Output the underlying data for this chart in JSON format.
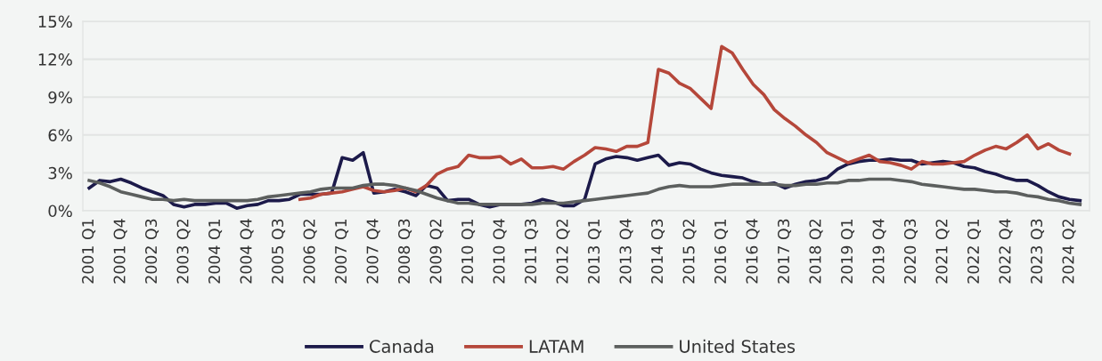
{
  "chart_data": {
    "type": "line",
    "categories": [
      "2001 Q1",
      null,
      null,
      "2001 Q4",
      null,
      null,
      "2002 Q3",
      null,
      null,
      "2003 Q2",
      null,
      null,
      "2004 Q1",
      null,
      null,
      "2004 Q4",
      null,
      null,
      "2005 Q3",
      null,
      null,
      "2006 Q2",
      null,
      null,
      "2007 Q1",
      null,
      null,
      "2007 Q4",
      null,
      null,
      "2008 Q3",
      null,
      null,
      "2009 Q2",
      null,
      null,
      "2010 Q1",
      null,
      null,
      "2010 Q4",
      null,
      null,
      "2011 Q3",
      null,
      null,
      "2012 Q2",
      null,
      null,
      "2013 Q1",
      null,
      null,
      "2013 Q4",
      null,
      null,
      "2014 Q3",
      null,
      null,
      "2015 Q2",
      null,
      null,
      "2016 Q1",
      null,
      null,
      "2016 Q4",
      null,
      null,
      "2017 Q3",
      null,
      null,
      "2018 Q2",
      null,
      null,
      "2019 Q1",
      null,
      null,
      "2019 Q4",
      null,
      null,
      "2020 Q3",
      null,
      null,
      "2021 Q2",
      null,
      null,
      "2022 Q1",
      null,
      null,
      "2022 Q4",
      null,
      null,
      "2023 Q3",
      null,
      null,
      "2024 Q2",
      null
    ],
    "series": [
      {
        "name": "Canada",
        "color": "#1c1a4a",
        "values": [
          1.8,
          2.4,
          2.3,
          2.5,
          2.2,
          1.8,
          1.5,
          1.2,
          0.5,
          0.3,
          0.5,
          0.5,
          0.6,
          0.6,
          0.2,
          0.4,
          0.5,
          0.8,
          0.8,
          0.9,
          1.3,
          1.3,
          1.3,
          1.4,
          4.2,
          4.0,
          4.6,
          1.4,
          1.5,
          1.7,
          1.5,
          1.2,
          2.0,
          1.8,
          0.8,
          0.9,
          0.9,
          0.5,
          0.3,
          0.5,
          0.5,
          0.5,
          0.6,
          0.9,
          0.7,
          0.4,
          0.4,
          0.9,
          3.7,
          4.1,
          4.3,
          4.2,
          4.0,
          4.2,
          4.4,
          3.6,
          3.8,
          3.7,
          3.3,
          3.0,
          2.8,
          2.7,
          2.6,
          2.3,
          2.1,
          2.2,
          1.8,
          2.1,
          2.3,
          2.4,
          2.6,
          3.3,
          3.7,
          3.9,
          4.0,
          4.0,
          4.1,
          4.0,
          4.0,
          3.7,
          3.8,
          3.9,
          3.8,
          3.5,
          3.4,
          3.1,
          2.9,
          2.6,
          2.4,
          2.4,
          2.0,
          1.5,
          1.1,
          0.9,
          0.8
        ]
      },
      {
        "name": "LATAM",
        "color": "#b5473a",
        "values": [
          null,
          null,
          null,
          null,
          null,
          null,
          null,
          null,
          null,
          null,
          null,
          null,
          null,
          null,
          null,
          null,
          null,
          null,
          null,
          null,
          0.9,
          1.0,
          1.3,
          1.4,
          1.5,
          1.7,
          1.9,
          1.6,
          1.5,
          1.6,
          1.8,
          1.5,
          2.0,
          2.9,
          3.3,
          3.5,
          4.4,
          4.2,
          4.2,
          4.3,
          3.7,
          4.1,
          3.4,
          3.4,
          3.5,
          3.3,
          3.9,
          4.4,
          5.0,
          4.9,
          4.7,
          5.1,
          5.1,
          5.4,
          11.2,
          10.9,
          10.1,
          9.7,
          8.9,
          8.1,
          13.0,
          12.5,
          11.2,
          10.0,
          9.2,
          8.0,
          7.3,
          6.7,
          6.0,
          5.4,
          4.6,
          4.2,
          3.8,
          4.1,
          4.4,
          3.9,
          3.8,
          3.6,
          3.3,
          3.9,
          3.7,
          3.7,
          3.8,
          3.9,
          4.4,
          4.8,
          5.1,
          4.9,
          5.4,
          6.0,
          4.9,
          5.3,
          4.8,
          4.5,
          null
        ]
      },
      {
        "name": "United States",
        "color": "#5c5f5e",
        "values": [
          2.4,
          2.2,
          1.9,
          1.5,
          1.3,
          1.1,
          0.9,
          0.9,
          0.8,
          0.9,
          0.8,
          0.8,
          0.8,
          0.8,
          0.8,
          0.8,
          0.9,
          1.1,
          1.2,
          1.3,
          1.4,
          1.5,
          1.7,
          1.8,
          1.8,
          1.8,
          2.0,
          2.1,
          2.1,
          2.0,
          1.8,
          1.6,
          1.3,
          1.0,
          0.8,
          0.6,
          0.6,
          0.5,
          0.5,
          0.5,
          0.5,
          0.5,
          0.5,
          0.6,
          0.6,
          0.6,
          0.7,
          0.8,
          0.9,
          1.0,
          1.1,
          1.2,
          1.3,
          1.4,
          1.7,
          1.9,
          2.0,
          1.9,
          1.9,
          1.9,
          2.0,
          2.1,
          2.1,
          2.1,
          2.1,
          2.1,
          2.0,
          2.0,
          2.1,
          2.1,
          2.2,
          2.2,
          2.4,
          2.4,
          2.5,
          2.5,
          2.5,
          2.4,
          2.3,
          2.1,
          2.0,
          1.9,
          1.8,
          1.7,
          1.7,
          1.6,
          1.5,
          1.5,
          1.4,
          1.2,
          1.1,
          0.9,
          0.8,
          0.6,
          0.5
        ]
      }
    ],
    "ylim": [
      0,
      15
    ],
    "yticks": [
      {
        "value": 0,
        "label": "0%"
      },
      {
        "value": 3,
        "label": "3%"
      },
      {
        "value": 6,
        "label": "6%"
      },
      {
        "value": 9,
        "label": "9%"
      },
      {
        "value": 12,
        "label": "12%"
      },
      {
        "value": 15,
        "label": "15%"
      }
    ],
    "grid": "y",
    "legend": "bottom"
  }
}
